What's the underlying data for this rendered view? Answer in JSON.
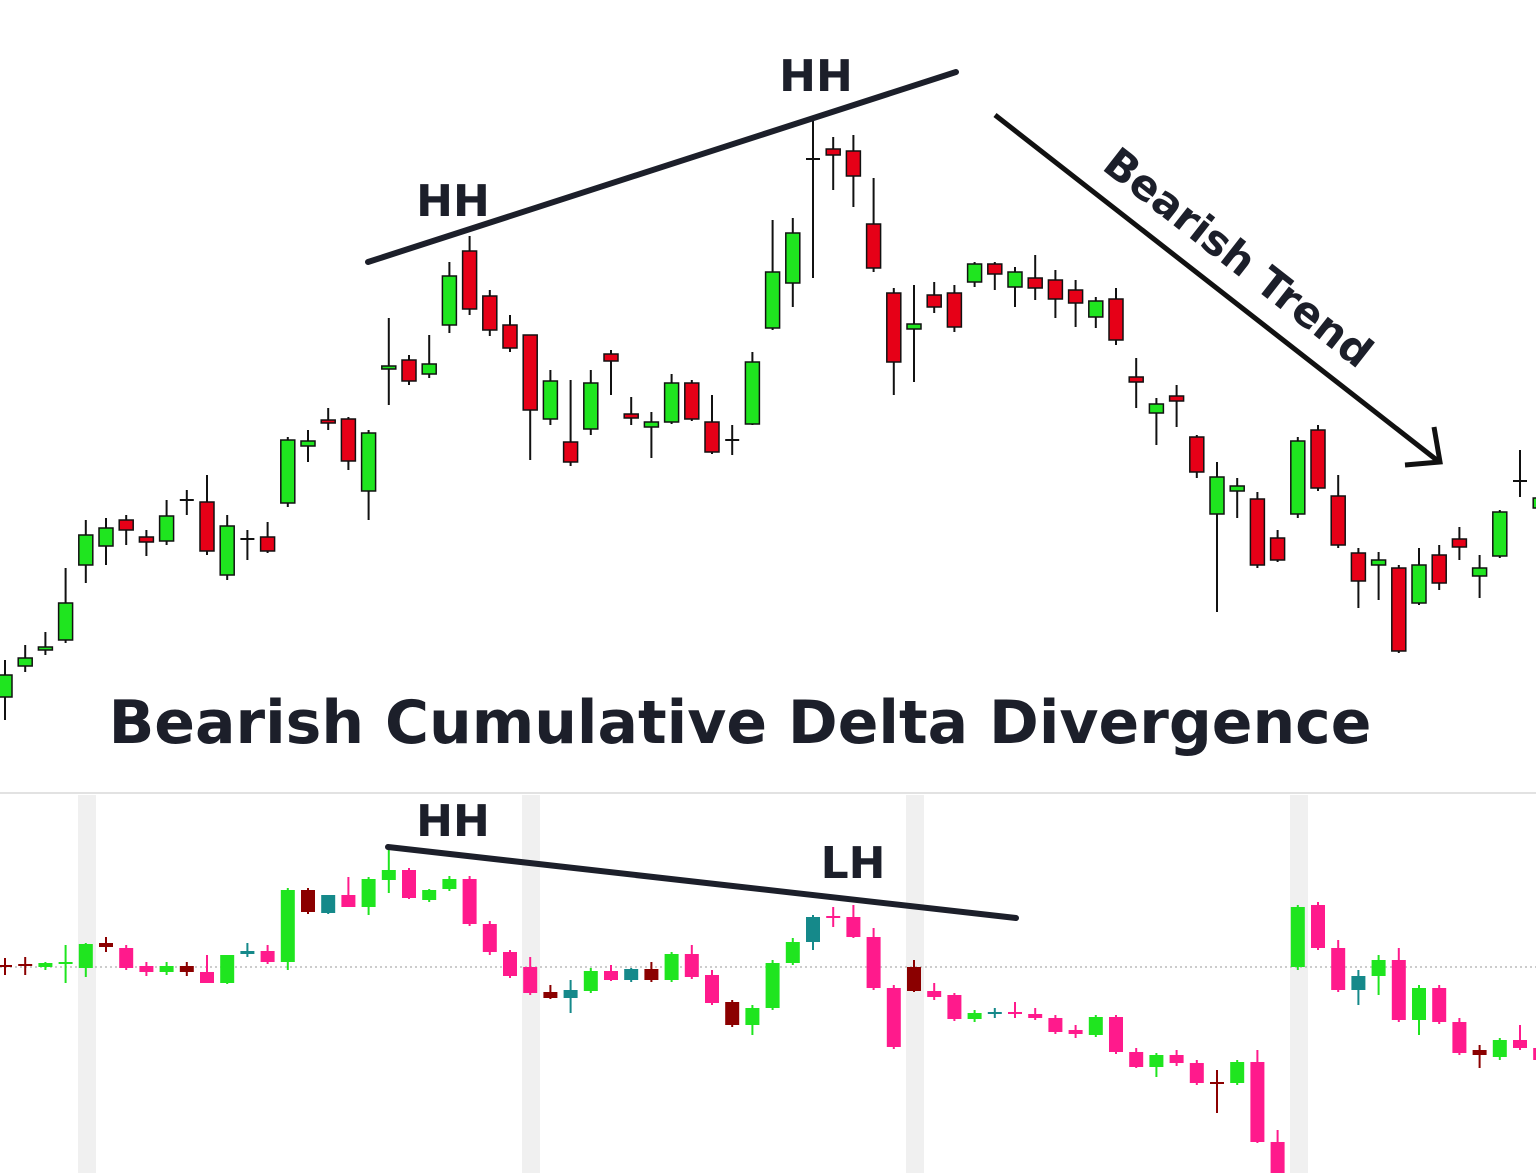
{
  "chart_data": [
    {
      "type": "candlestick",
      "title": "Bearish Cumulative Delta Divergence",
      "annotations": [
        "HH",
        "HH",
        "Bearish Trend"
      ],
      "up_color": "#1fe51f",
      "down_color": "#e60017",
      "outline": "#111111",
      "ylim": [
        280,
        940
      ],
      "open": [
        303,
        334,
        350,
        360,
        435,
        454,
        480,
        463,
        459,
        500,
        498,
        425,
        461,
        463,
        497,
        554,
        580,
        581,
        509,
        631,
        640,
        626,
        675,
        749,
        704,
        675,
        665,
        581,
        558,
        571,
        646,
        586,
        573,
        578,
        617,
        578,
        560,
        576,
        672,
        717,
        841,
        851,
        849,
        776,
        707,
        671,
        705,
        707,
        718,
        736,
        713,
        722,
        720,
        710,
        683,
        701,
        623,
        587,
        604,
        563,
        486,
        509,
        501,
        462,
        486,
        570,
        504,
        447,
        435,
        432,
        397,
        445,
        461,
        424,
        444,
        519,
        492
      ],
      "high": [
        340,
        355,
        368,
        432,
        480,
        482,
        485,
        470,
        500,
        510,
        525,
        485,
        470,
        478,
        563,
        570,
        592,
        583,
        570,
        682,
        645,
        665,
        738,
        764,
        710,
        685,
        665,
        630,
        620,
        630,
        650,
        603,
        588,
        626,
        620,
        605,
        575,
        648,
        780,
        782,
        880,
        863,
        865,
        822,
        712,
        715,
        718,
        715,
        738,
        738,
        733,
        745,
        730,
        720,
        703,
        712,
        642,
        602,
        615,
        565,
        538,
        522,
        508,
        470,
        563,
        575,
        525,
        452,
        448,
        435,
        452,
        455,
        473,
        445,
        490,
        550,
        510
      ],
      "low": [
        280,
        328,
        345,
        357,
        417,
        435,
        455,
        444,
        455,
        485,
        445,
        420,
        440,
        447,
        493,
        538,
        570,
        530,
        480,
        595,
        615,
        622,
        667,
        685,
        664,
        648,
        540,
        575,
        534,
        565,
        605,
        575,
        542,
        576,
        579,
        546,
        545,
        575,
        670,
        693,
        722,
        810,
        793,
        728,
        605,
        618,
        687,
        668,
        713,
        710,
        693,
        700,
        682,
        673,
        672,
        655,
        592,
        555,
        573,
        522,
        388,
        482,
        432,
        438,
        482,
        509,
        452,
        392,
        400,
        347,
        395,
        410,
        440,
        402,
        442,
        503,
        488
      ],
      "close": [
        325,
        342,
        353,
        397,
        465,
        472,
        470,
        458,
        484,
        500,
        449,
        474,
        461,
        449,
        560,
        559,
        577,
        539,
        567,
        634,
        619,
        636,
        724,
        691,
        670,
        652,
        590,
        619,
        538,
        617,
        639,
        582,
        578,
        617,
        581,
        548,
        560,
        638,
        728,
        767,
        841,
        845,
        824,
        732,
        638,
        676,
        693,
        673,
        736,
        726,
        728,
        712,
        701,
        697,
        699,
        660,
        618,
        596,
        599,
        528,
        523,
        514,
        435,
        440,
        559,
        512,
        455,
        419,
        440,
        349,
        435,
        417,
        453,
        432,
        488,
        519,
        502
      ]
    },
    {
      "type": "candlestick",
      "annotations": [
        "HH",
        "LH"
      ],
      "outline": "none",
      "ylim": [
        -206,
        172
      ],
      "hline": 0,
      "colors": [
        "#8b0000",
        "#8b0000",
        "#1fe51f",
        "#1fe51f",
        "#1fe51f",
        "#8b0000",
        "#ff1a8c",
        "#ff1a8c",
        "#1fe51f",
        "#8b0000",
        "#ff1a8c",
        "#1fe51f",
        "#15898a",
        "#ff1a8c",
        "#1fe51f",
        "#8b0000",
        "#15898a",
        "#ff1a8c",
        "#1fe51f",
        "#1fe51f",
        "#ff1a8c",
        "#1fe51f",
        "#1fe51f",
        "#ff1a8c",
        "#ff1a8c",
        "#ff1a8c",
        "#ff1a8c",
        "#8b0000",
        "#15898a",
        "#1fe51f",
        "#ff1a8c",
        "#15898a",
        "#8b0000",
        "#1fe51f",
        "#ff1a8c",
        "#ff1a8c",
        "#8b0000",
        "#1fe51f",
        "#1fe51f",
        "#1fe51f",
        "#15898a",
        "#ff1a8c",
        "#ff1a8c",
        "#ff1a8c",
        "#ff1a8c",
        "#8b0000",
        "#ff1a8c",
        "#ff1a8c",
        "#1fe51f",
        "#15898a",
        "#ff1a8c",
        "#ff1a8c",
        "#ff1a8c",
        "#ff1a8c",
        "#1fe51f",
        "#ff1a8c",
        "#ff1a8c",
        "#1fe51f",
        "#ff1a8c",
        "#ff1a8c",
        "#8b0000",
        "#1fe51f",
        "#ff1a8c",
        "#ff1a8c",
        "#1fe51f",
        "#ff1a8c",
        "#ff1a8c",
        "#15898a",
        "#1fe51f",
        "#ff1a8c",
        "#1fe51f",
        "#ff1a8c",
        "#ff1a8c",
        "#8b0000",
        "#1fe51f",
        "#ff1a8c",
        "#ff1a8c"
      ],
      "open": [
        1,
        2,
        0,
        4,
        -1,
        24,
        19,
        1,
        -5,
        1,
        -5,
        -16,
        13,
        16,
        5,
        77,
        54,
        72,
        60,
        87,
        97,
        67,
        78,
        88,
        43,
        15,
        0,
        -25,
        -31,
        -24,
        -4,
        -13,
        -2,
        -13,
        13,
        -8,
        -35,
        -58,
        -41,
        4,
        25,
        50,
        50,
        30,
        -21,
        0,
        -24,
        -28,
        -52,
        -47,
        -45,
        -47,
        -51,
        -63,
        -68,
        -50,
        -85,
        -100,
        -88,
        -96,
        -116,
        -116,
        -95,
        -175,
        0,
        62,
        19,
        -23,
        -9,
        7,
        -53,
        -21,
        -55,
        -83,
        -90,
        -73,
        -81
      ],
      "high": [
        9,
        10,
        5,
        22,
        24,
        30,
        22,
        5,
        5,
        5,
        12,
        12,
        24,
        22,
        79,
        79,
        72,
        90,
        90,
        122,
        99,
        78,
        91,
        91,
        46,
        17,
        10,
        -18,
        -13,
        -1,
        2,
        -1,
        5,
        15,
        22,
        -3,
        -33,
        -38,
        7,
        29,
        52,
        60,
        62,
        39,
        -18,
        7,
        -16,
        -26,
        -43,
        -41,
        -35,
        -41,
        -48,
        -58,
        -48,
        -48,
        -81,
        -86,
        -83,
        -93,
        -103,
        -93,
        -83,
        -163,
        62,
        65,
        27,
        -3,
        12,
        19,
        -18,
        -18,
        -51,
        -78,
        -71,
        -58,
        -78
      ],
      "low": [
        -8,
        -8,
        -3,
        -16,
        -10,
        15,
        -3,
        -9,
        -8,
        -9,
        -16,
        -17,
        10,
        3,
        -3,
        53,
        53,
        60,
        52,
        74,
        68,
        65,
        76,
        41,
        12,
        -11,
        -28,
        -32,
        -46,
        -26,
        -14,
        -15,
        -15,
        -15,
        -12,
        -38,
        -60,
        -68,
        -43,
        2,
        17,
        40,
        29,
        -23,
        -82,
        -25,
        -33,
        -54,
        -55,
        -51,
        -51,
        -53,
        -67,
        -71,
        -70,
        -87,
        -101,
        -110,
        -99,
        -118,
        -146,
        -118,
        -176,
        -206,
        -3,
        17,
        -25,
        -38,
        -28,
        -55,
        -68,
        -57,
        -88,
        -101,
        -93,
        -83,
        -95
      ],
      "close": [
        1,
        2,
        4,
        4,
        23,
        20,
        -1,
        -5,
        1,
        -5,
        -16,
        12,
        16,
        5,
        77,
        55,
        72,
        60,
        88,
        97,
        69,
        77,
        88,
        43,
        15,
        -9,
        -26,
        -31,
        -23,
        -4,
        -13,
        -2,
        -13,
        13,
        -10,
        -36,
        -58,
        -41,
        4,
        25,
        50,
        50,
        30,
        -21,
        -80,
        -24,
        -30,
        -52,
        -46,
        -45,
        -47,
        -51,
        -65,
        -67,
        -50,
        -85,
        -100,
        -88,
        -96,
        -116,
        -116,
        -95,
        -175,
        -206,
        60,
        19,
        -23,
        -9,
        7,
        -53,
        -21,
        -55,
        -86,
        -88,
        -73,
        -81,
        -93
      ]
    }
  ]
}
